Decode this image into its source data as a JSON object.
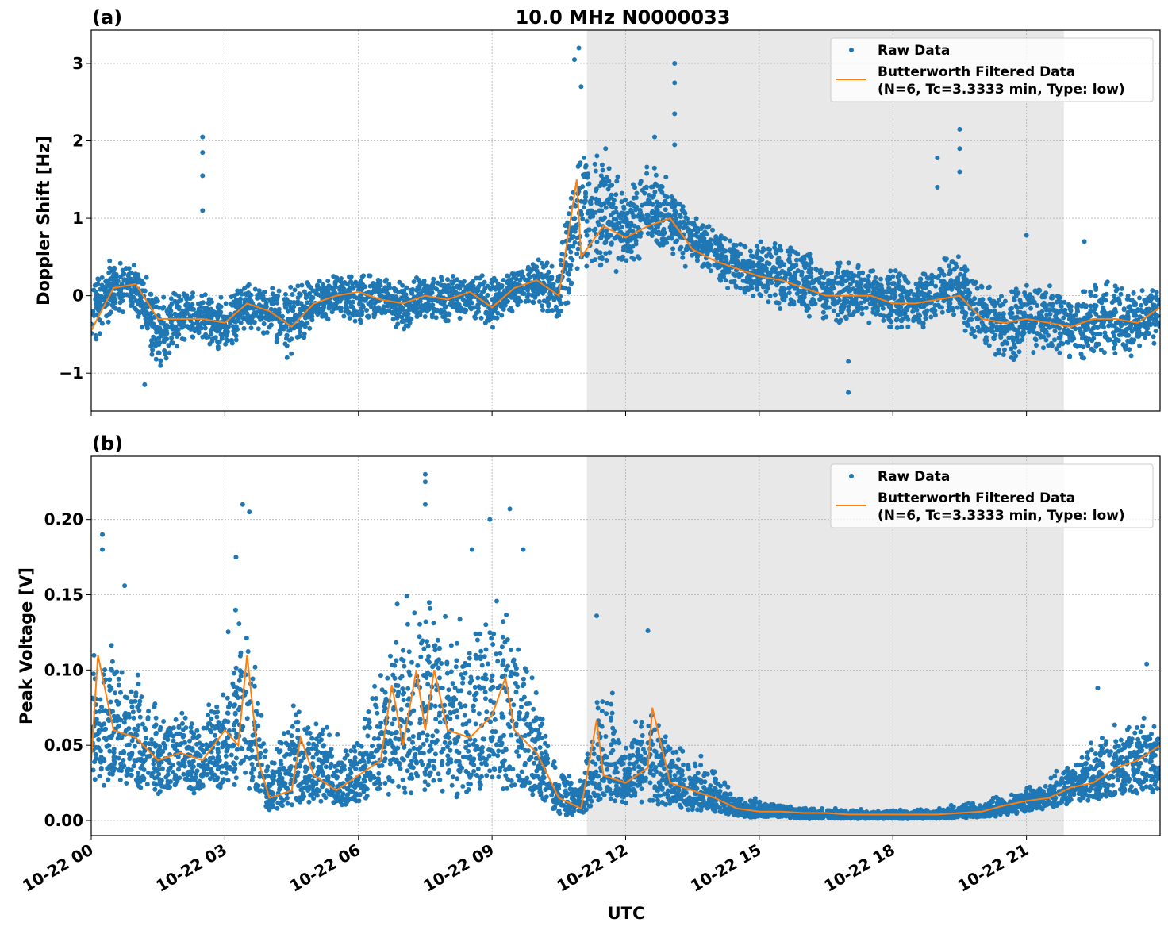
{
  "chart_data": [
    {
      "type": "scatter",
      "panel_label": "(a)",
      "title": "10.0 MHz N0000033",
      "xlabel": "",
      "ylabel": "Doppler Shift [Hz]",
      "ylim": [
        -1.49,
        3.43
      ],
      "xlim_hours": [
        0,
        24
      ],
      "yticks": [
        -1,
        0,
        1,
        2,
        3
      ],
      "ytick_labels": [
        "−1",
        "0",
        "1",
        "2",
        "3"
      ],
      "grid": true,
      "shaded_span_hours": [
        11.13,
        21.84
      ],
      "shade_color": "#e8e8e8",
      "legend": {
        "placement": "top-right",
        "entries": [
          "Raw Data",
          "Butterworth Filtered Data",
          "(N=6, Tc=3.3333 min, Type: low)"
        ]
      },
      "series": [
        {
          "name": "Raw Data",
          "color": "#1f77b4",
          "x_hours": [
            0,
            0.5,
            1,
            1.5,
            2,
            2.5,
            3,
            3.5,
            4,
            4.5,
            5,
            5.5,
            6,
            6.5,
            7,
            7.5,
            8,
            8.5,
            9,
            9.5,
            10,
            10.5,
            11,
            11.5,
            12,
            12.5,
            13,
            13.5,
            14,
            14.5,
            15,
            15.5,
            16,
            16.5,
            17,
            17.5,
            18,
            18.5,
            19,
            19.5,
            20,
            20.5,
            21,
            21.5,
            22,
            22.5,
            23,
            23.5,
            24
          ],
          "low": [
            -0.8,
            -0.3,
            -0.2,
            -1.1,
            -0.6,
            -0.6,
            -0.8,
            -0.4,
            -0.6,
            -0.9,
            -0.4,
            -0.3,
            -0.4,
            -0.3,
            -0.5,
            -0.3,
            -0.4,
            -0.3,
            -0.5,
            -0.2,
            -0.2,
            -0.4,
            0.2,
            0.3,
            0.3,
            0.5,
            0.5,
            0.3,
            0.2,
            0.0,
            -0.1,
            -0.2,
            -0.3,
            -0.4,
            -0.4,
            -0.4,
            -0.5,
            -0.5,
            -0.4,
            -0.4,
            -0.8,
            -0.9,
            -0.8,
            -0.7,
            -0.9,
            -0.8,
            -0.8,
            -0.8,
            -0.6
          ],
          "high": [
            0.3,
            0.6,
            0.4,
            0.1,
            0.1,
            0.1,
            0.0,
            0.2,
            0.1,
            0.2,
            0.2,
            0.3,
            0.3,
            0.3,
            0.2,
            0.3,
            0.3,
            0.3,
            0.3,
            0.4,
            0.5,
            0.5,
            2.0,
            1.9,
            1.4,
            1.8,
            1.5,
            1.1,
            0.9,
            0.7,
            0.7,
            0.8,
            0.6,
            0.5,
            0.5,
            0.4,
            0.4,
            0.3,
            0.5,
            0.6,
            0.2,
            0.2,
            0.2,
            0.2,
            0.1,
            0.2,
            0.2,
            0.1,
            0.2
          ],
          "outliers": [
            [
              2.5,
              2.05
            ],
            [
              2.5,
              1.85
            ],
            [
              2.5,
              1.55
            ],
            [
              2.5,
              1.1
            ],
            [
              10.85,
              3.05
            ],
            [
              10.95,
              3.2
            ],
            [
              11.0,
              2.7
            ],
            [
              11.55,
              1.9
            ],
            [
              12.65,
              2.05
            ],
            [
              13.1,
              3.0
            ],
            [
              13.1,
              2.75
            ],
            [
              13.1,
              2.35
            ],
            [
              13.1,
              1.95
            ],
            [
              19.0,
              1.78
            ],
            [
              19.0,
              1.4
            ],
            [
              19.5,
              2.15
            ],
            [
              19.5,
              1.9
            ],
            [
              19.5,
              1.6
            ],
            [
              17.0,
              -1.25
            ],
            [
              17.0,
              -0.85
            ],
            [
              1.2,
              -1.15
            ],
            [
              21.0,
              0.78
            ],
            [
              22.3,
              0.7
            ]
          ]
        },
        {
          "name": "Butterworth Filtered Data",
          "color": "#ff7f0e",
          "x_hours": [
            0,
            0.5,
            1,
            1.5,
            2,
            2.5,
            3,
            3.5,
            4,
            4.5,
            5,
            5.5,
            6,
            6.5,
            7,
            7.5,
            8,
            8.5,
            9,
            9.5,
            10,
            10.5,
            10.9,
            11,
            11.5,
            12,
            12.5,
            13,
            13.5,
            14,
            14.5,
            15,
            15.5,
            16,
            16.5,
            17,
            17.5,
            18,
            18.5,
            19,
            19.5,
            20,
            20.5,
            21,
            21.5,
            22,
            22.5,
            23,
            23.5,
            24
          ],
          "values": [
            -0.45,
            0.1,
            0.15,
            -0.3,
            -0.3,
            -0.3,
            -0.35,
            -0.1,
            -0.2,
            -0.4,
            -0.1,
            0.0,
            0.05,
            -0.05,
            -0.1,
            0.0,
            -0.05,
            0.05,
            -0.15,
            0.1,
            0.2,
            0.0,
            1.5,
            0.5,
            0.9,
            0.75,
            0.9,
            1.0,
            0.6,
            0.45,
            0.35,
            0.25,
            0.2,
            0.1,
            0.0,
            0.0,
            0.0,
            -0.1,
            -0.1,
            -0.05,
            0.0,
            -0.3,
            -0.35,
            -0.3,
            -0.35,
            -0.4,
            -0.3,
            -0.3,
            -0.35,
            -0.15
          ]
        }
      ]
    },
    {
      "type": "scatter",
      "panel_label": "(b)",
      "title": "",
      "xlabel": "UTC",
      "ylabel": "Peak Voltage [V]",
      "ylim": [
        -0.01,
        0.242
      ],
      "xlim_hours": [
        0,
        24
      ],
      "yticks": [
        0,
        0.05,
        0.1,
        0.15,
        0.2
      ],
      "ytick_labels": [
        "0.00",
        "0.05",
        "0.10",
        "0.15",
        "0.20"
      ],
      "xticks_hours": [
        0,
        3,
        6,
        9,
        12,
        15,
        18,
        21
      ],
      "xtick_labels": [
        "10-22 00",
        "10-22 03",
        "10-22 06",
        "10-22 09",
        "10-22 12",
        "10-22 15",
        "10-22 18",
        "10-22 21"
      ],
      "grid": true,
      "shaded_span_hours": [
        11.13,
        21.84
      ],
      "shade_color": "#e8e8e8",
      "legend": {
        "placement": "top-right",
        "entries": [
          "Raw Data",
          "Butterworth Filtered Data",
          "(N=6, Tc=3.3333 min, Type: low)"
        ]
      },
      "series": [
        {
          "name": "Raw Data",
          "color": "#1f77b4",
          "x_hours": [
            0,
            0.5,
            1,
            1.5,
            2,
            2.5,
            3,
            3.5,
            4,
            4.5,
            5,
            5.5,
            6,
            6.5,
            7,
            7.5,
            8,
            8.5,
            9,
            9.5,
            10,
            10.5,
            11,
            11.5,
            12,
            12.5,
            13,
            13.5,
            14,
            14.5,
            15,
            15.5,
            16,
            16.5,
            17,
            17.5,
            18,
            18.5,
            19,
            19.5,
            20,
            20.5,
            21,
            21.5,
            22,
            22.5,
            23,
            23.5,
            24
          ],
          "low": [
            0.02,
            0.025,
            0.02,
            0.015,
            0.02,
            0.015,
            0.02,
            0.02,
            0.005,
            0.008,
            0.01,
            0.008,
            0.01,
            0.015,
            0.015,
            0.015,
            0.015,
            0.015,
            0.02,
            0.015,
            0.01,
            0.003,
            0.004,
            0.01,
            0.01,
            0.01,
            0.008,
            0.005,
            0.004,
            0.002,
            0.002,
            0.002,
            0.001,
            0.001,
            0.001,
            0.001,
            0.001,
            0.001,
            0.001,
            0.001,
            0.002,
            0.003,
            0.005,
            0.008,
            0.01,
            0.012,
            0.015,
            0.015,
            0.02
          ],
          "high": [
            0.15,
            0.12,
            0.11,
            0.08,
            0.09,
            0.08,
            0.12,
            0.17,
            0.04,
            0.1,
            0.08,
            0.06,
            0.07,
            0.13,
            0.16,
            0.16,
            0.16,
            0.15,
            0.17,
            0.16,
            0.11,
            0.04,
            0.03,
            0.11,
            0.06,
            0.1,
            0.06,
            0.05,
            0.04,
            0.02,
            0.015,
            0.012,
            0.01,
            0.01,
            0.008,
            0.008,
            0.008,
            0.008,
            0.01,
            0.012,
            0.015,
            0.02,
            0.025,
            0.03,
            0.045,
            0.06,
            0.07,
            0.08,
            0.08
          ],
          "outliers": [
            [
              0.25,
              0.19
            ],
            [
              0.25,
              0.18
            ],
            [
              3.4,
              0.21
            ],
            [
              3.55,
              0.205
            ],
            [
              3.25,
              0.175
            ],
            [
              7.5,
              0.23
            ],
            [
              7.5,
              0.225
            ],
            [
              7.5,
              0.21
            ],
            [
              8.55,
              0.18
            ],
            [
              8.95,
              0.2
            ],
            [
              9.4,
              0.207
            ],
            [
              9.7,
              0.18
            ],
            [
              11.35,
              0.136
            ],
            [
              12.5,
              0.126
            ],
            [
              0.75,
              0.156
            ],
            [
              23.7,
              0.104
            ],
            [
              22.6,
              0.088
            ]
          ]
        },
        {
          "name": "Butterworth Filtered Data",
          "color": "#ff7f0e",
          "x_hours": [
            0,
            0.15,
            0.5,
            1,
            1.5,
            2,
            2.5,
            3,
            3.3,
            3.5,
            3.75,
            4,
            4.5,
            4.7,
            5,
            5.5,
            6,
            6.5,
            6.75,
            7,
            7.3,
            7.5,
            7.7,
            8,
            8.5,
            9,
            9.3,
            9.5,
            10,
            10.5,
            11,
            11.35,
            11.5,
            12,
            12.5,
            12.6,
            13,
            13.5,
            14,
            14.5,
            15,
            15.5,
            16,
            16.5,
            17,
            17.5,
            18,
            18.5,
            19,
            19.5,
            20,
            20.5,
            21,
            21.5,
            22,
            22.5,
            23,
            23.5,
            24
          ],
          "values": [
            0.04,
            0.11,
            0.06,
            0.055,
            0.04,
            0.045,
            0.04,
            0.06,
            0.05,
            0.11,
            0.04,
            0.015,
            0.02,
            0.055,
            0.03,
            0.02,
            0.03,
            0.04,
            0.09,
            0.05,
            0.1,
            0.06,
            0.1,
            0.06,
            0.055,
            0.07,
            0.095,
            0.06,
            0.045,
            0.015,
            0.008,
            0.067,
            0.03,
            0.025,
            0.035,
            0.075,
            0.025,
            0.02,
            0.015,
            0.008,
            0.006,
            0.006,
            0.005,
            0.005,
            0.004,
            0.004,
            0.004,
            0.004,
            0.004,
            0.005,
            0.006,
            0.01,
            0.013,
            0.015,
            0.022,
            0.025,
            0.035,
            0.04,
            0.05
          ]
        }
      ]
    }
  ]
}
